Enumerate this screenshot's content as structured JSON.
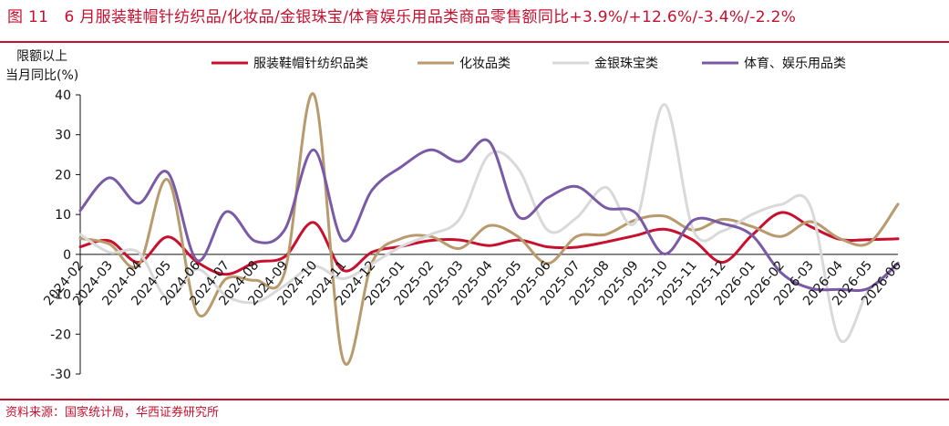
{
  "header": {
    "title": "图 11　6 月服装鞋帽针纺织品/化妆品/金银珠宝/体育娱乐用品类商品零售额同比+3.9%/+12.6%/-3.4%/-2.2%",
    "source": "资料来源：国家统计局，华西证券研究所"
  },
  "chart_data": {
    "type": "line",
    "title": "6 月服装鞋帽针纺织品/化妆品/金银珠宝/体育娱乐用品类商品零售额同比+3.9%/+12.6%/-3.4%/-2.2%",
    "ylabel_lines": [
      "限额以上",
      "当月同比(%)"
    ],
    "ylim": [
      -30,
      40
    ],
    "yticks": [
      -30,
      -20,
      -10,
      0,
      10,
      20,
      30,
      40
    ],
    "grid": false,
    "legend_position": "top",
    "categories": [
      "2024-02",
      "2024-03",
      "2024-04",
      "2024-05",
      "2024-06",
      "2024-07",
      "2024-08",
      "2024-09",
      "2024-10",
      "2024-11",
      "2024-12",
      "2025-01",
      "2025-02",
      "2025-03",
      "2025-04",
      "2025-05",
      "2025-06",
      "2025-07",
      "2025-08",
      "2025-09",
      "2025-10",
      "2025-11",
      "2025-12",
      "2026-01",
      "2026-02",
      "2026-03",
      "2026-04",
      "2026-05",
      "2026-06"
    ],
    "series": [
      {
        "name": "服装鞋帽针纺织品类",
        "color": "#c8102e",
        "values": [
          1.9,
          3.4,
          -2.0,
          4.4,
          -1.9,
          -5.0,
          -2.0,
          -0.6,
          8.0,
          -4.0,
          0.6,
          2.0,
          3.5,
          3.6,
          2.2,
          3.6,
          1.9,
          1.8,
          3.1,
          4.7,
          6.3,
          3.5,
          -2.0,
          4.8,
          10.5,
          7.0,
          3.8,
          3.7,
          3.9
        ]
      },
      {
        "name": "化妆品类",
        "color": "#b89a6d",
        "values": [
          4.0,
          2.6,
          -2.7,
          18.7,
          -14.6,
          -6.1,
          -6.5,
          -4.5,
          40.1,
          -26.4,
          -1.9,
          4.0,
          4.5,
          1.5,
          7.2,
          4.4,
          -2.3,
          4.5,
          5.0,
          8.6,
          9.6,
          6.1,
          8.8,
          7.0,
          4.5,
          8.2,
          4.0,
          2.8,
          12.6
        ]
      },
      {
        "name": "金银珠宝类",
        "color": "#d9d9d9",
        "values": [
          5.0,
          0.5,
          0.5,
          -11.0,
          -3.7,
          -10.4,
          -12.0,
          -7.8,
          -3.0,
          -6.1,
          -2.3,
          2.0,
          5.0,
          9.0,
          25.0,
          21.5,
          6.1,
          9.2,
          16.8,
          8.0,
          37.6,
          5.9,
          5.9,
          10.0,
          12.5,
          12.1,
          -21.3,
          -9.0,
          -3.4
        ]
      },
      {
        "name": "体育、娱乐用品类",
        "color": "#7a5aa6",
        "values": [
          11.0,
          19.2,
          12.8,
          20.5,
          -1.5,
          10.7,
          3.3,
          6.2,
          26.2,
          3.5,
          16.2,
          22.0,
          26.2,
          23.3,
          28.3,
          9.5,
          14.2,
          17.0,
          11.7,
          10.5,
          0.1,
          8.6,
          7.7,
          4.8,
          -4.6,
          -8.5,
          -8.8,
          -8.5,
          -2.2
        ]
      }
    ]
  }
}
